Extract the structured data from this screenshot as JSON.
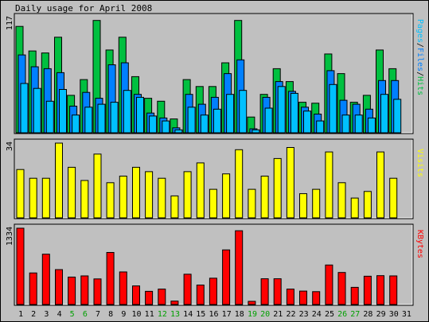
{
  "title": "Daily usage for April 2008",
  "colors": {
    "background": "#c0c0c0",
    "hits": "#00c040",
    "files": "#0080ff",
    "pages": "#00c0ff",
    "visits": "#ffff00",
    "kbytes": "#ff0000",
    "weekday_label": "#000000",
    "weekend_label": "#00a000"
  },
  "right_labels": {
    "pages": "Pages",
    "sep1": "/",
    "files": "Files",
    "sep2": "/",
    "hits": "Hits",
    "visits": "Visits",
    "kbytes": "KBytes"
  },
  "chart_data": {
    "type": "bar",
    "categories": [
      "1",
      "2",
      "3",
      "4",
      "5",
      "6",
      "7",
      "8",
      "9",
      "10",
      "11",
      "12",
      "13",
      "14",
      "15",
      "16",
      "17",
      "18",
      "19",
      "20",
      "21",
      "22",
      "23",
      "24",
      "25",
      "26",
      "27",
      "28",
      "29",
      "30",
      "31"
    ],
    "weekend_days": [
      "5",
      "6",
      "12",
      "13",
      "19",
      "20",
      "26",
      "27"
    ],
    "panels": [
      {
        "id": "top",
        "max_label": "117",
        "ylim": [
          0,
          117
        ],
        "series": [
          {
            "name": "Hits",
            "values": [
              108,
              83,
              81,
              97,
              38,
              54,
              114,
              84,
              97,
              57,
              35,
              32,
              14,
              54,
              47,
              47,
              71,
              114,
              16,
              39,
              65,
              52,
              31,
              30,
              80,
              60,
              31,
              38,
              84,
              65,
              0
            ]
          },
          {
            "name": "Files",
            "values": [
              79,
              67,
              65,
              61,
              27,
              41,
              35,
              69,
              71,
              39,
              20,
              15,
              5,
              39,
              29,
              36,
              60,
              74,
              4,
              36,
              52,
              42,
              26,
              19,
              63,
              33,
              29,
              24,
              53,
              53,
              0
            ]
          },
          {
            "name": "Pages",
            "values": [
              50,
              45,
              32,
              44,
              18,
              26,
              29,
              31,
              43,
              36,
              17,
              12,
              3,
              26,
              18,
              24,
              39,
              43,
              3,
              25,
              47,
              40,
              22,
              12,
              49,
              18,
              18,
              15,
              39,
              34,
              0
            ]
          }
        ]
      },
      {
        "id": "middle",
        "max_label": "34",
        "ylim": [
          0,
          34
        ],
        "series": [
          {
            "name": "Visits",
            "values": [
              22,
              18,
              18,
              34,
              23,
              17,
              29,
              16,
              19,
              23,
              21,
              18,
              10,
              21,
              25,
              13,
              20,
              31,
              13,
              19,
              27,
              32,
              11,
              13,
              30,
              16,
              9,
              12,
              30,
              18,
              0
            ]
          }
        ]
      },
      {
        "id": "bottom",
        "max_label": "1334",
        "ylim": [
          0,
          1334
        ],
        "series": [
          {
            "name": "KBytes",
            "values": [
              1334,
              552,
              880,
              610,
              480,
              500,
              447,
              910,
              570,
              325,
              230,
              270,
              60,
              530,
              340,
              460,
              955,
              1290,
              55,
              450,
              450,
              270,
              235,
              225,
              690,
              560,
              300,
              495,
              505,
              500,
              0
            ]
          }
        ]
      }
    ]
  }
}
